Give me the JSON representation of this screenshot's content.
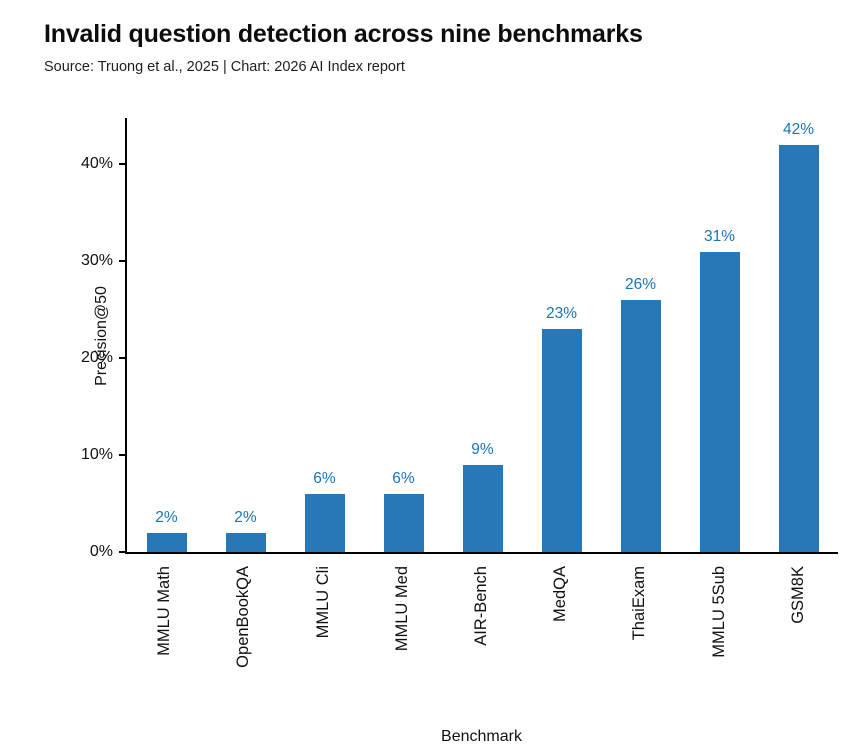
{
  "chart_data": {
    "type": "bar",
    "title": "Invalid question detection across nine benchmarks",
    "subtitle": "Source: Truong et al., 2025 | Chart: 2026 AI Index report",
    "categories": [
      "MMLU Math",
      "OpenBookQA",
      "MMLU Cli",
      "MMLU Med",
      "AIR-Bench",
      "MedQA",
      "ThaiExam",
      "MMLU 5Sub",
      "GSM8K"
    ],
    "values": [
      2,
      2,
      6,
      6,
      9,
      23,
      26,
      31,
      42
    ],
    "value_labels": [
      "2%",
      "2%",
      "6%",
      "6%",
      "9%",
      "23%",
      "26%",
      "31%",
      "42%"
    ],
    "xlabel": "Benchmark",
    "ylabel": "Precision@50",
    "ylim": [
      0,
      45
    ],
    "yticks": [
      0,
      10,
      20,
      30,
      40
    ],
    "ytick_labels": [
      "0%",
      "10%",
      "20%",
      "30%",
      "40%"
    ],
    "grid": false,
    "legend": false,
    "bar_color": "#2878b8",
    "value_label_color": "#1a74b8",
    "axis_color": "#000000"
  }
}
